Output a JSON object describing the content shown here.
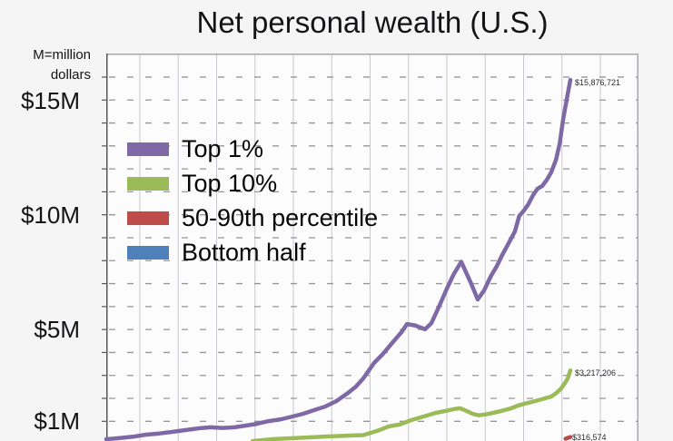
{
  "title": "Net personal wealth (U.S.)",
  "y_axis": {
    "unit_note_line1": "M=million",
    "unit_note_line2": "dollars",
    "tick_labels": [
      {
        "label": "$15M",
        "value_m": 15
      },
      {
        "label": "$10M",
        "value_m": 10
      },
      {
        "label": "$5M",
        "value_m": 5
      },
      {
        "label": "$1M",
        "value_m": 1
      }
    ]
  },
  "legend": {
    "items": [
      {
        "label": "Top 1%",
        "color": "#7e68a5"
      },
      {
        "label": "Top 10%",
        "color": "#9bbb59"
      },
      {
        "label": "50-90th percentile",
        "color": "#be4c4a"
      },
      {
        "label": "Bottom half",
        "color": "#4e81bc"
      }
    ]
  },
  "end_labels": {
    "top1": "$15,876,721",
    "top10": "$3,217,206",
    "mid": "$316,574"
  },
  "colors": {
    "page_bg": "#f5f5f6",
    "plot_bg": "#fcfcfd",
    "v_gridline": "#c8c8ce",
    "h_dash": "#96969b",
    "border": "#a7a7ad",
    "axis": "#57575c",
    "series_top1": "#7e68a5",
    "series_top10": "#9bbb59",
    "series_mid": "#be4c4a",
    "series_bottom": "#4e81bc"
  },
  "chart_data": {
    "type": "line",
    "title": "Net personal wealth (U.S.)",
    "ylabel": "M=million dollars",
    "ylim_m": [
      0,
      17
    ],
    "y_gridline_interval_m": 1,
    "y_labeled_ticks_m": [
      15,
      10,
      5,
      1
    ],
    "v_gridline_count": 13,
    "x_axis_labels_visible": false,
    "legend_position": "upper-left-inside",
    "grid": "both",
    "note": "x given as fraction of plot width (year labels cropped out of screenshot); values in million USD",
    "series": [
      {
        "name": "Top 1%",
        "color": "#7e68a5",
        "end_label": "$15,876,721",
        "end_value_usd": 15876721,
        "visible": true,
        "points": [
          [
            0.0,
            0.22
          ],
          [
            0.025,
            0.27
          ],
          [
            0.05,
            0.33
          ],
          [
            0.075,
            0.42
          ],
          [
            0.1,
            0.47
          ],
          [
            0.125,
            0.54
          ],
          [
            0.15,
            0.62
          ],
          [
            0.176,
            0.7
          ],
          [
            0.196,
            0.74
          ],
          [
            0.218,
            0.71
          ],
          [
            0.241,
            0.74
          ],
          [
            0.261,
            0.81
          ],
          [
            0.283,
            0.89
          ],
          [
            0.305,
            1.01
          ],
          [
            0.329,
            1.09
          ],
          [
            0.35,
            1.21
          ],
          [
            0.37,
            1.33
          ],
          [
            0.391,
            1.49
          ],
          [
            0.411,
            1.64
          ],
          [
            0.432,
            1.88
          ],
          [
            0.452,
            2.2
          ],
          [
            0.469,
            2.51
          ],
          [
            0.483,
            2.87
          ],
          [
            0.503,
            3.54
          ],
          [
            0.52,
            3.94
          ],
          [
            0.537,
            4.41
          ],
          [
            0.555,
            4.89
          ],
          [
            0.565,
            5.24
          ],
          [
            0.58,
            5.18
          ],
          [
            0.599,
            5.01
          ],
          [
            0.611,
            5.28
          ],
          [
            0.625,
            5.99
          ],
          [
            0.64,
            6.78
          ],
          [
            0.653,
            7.42
          ],
          [
            0.667,
            7.95
          ],
          [
            0.686,
            6.98
          ],
          [
            0.698,
            6.31
          ],
          [
            0.71,
            6.71
          ],
          [
            0.722,
            7.3
          ],
          [
            0.734,
            7.77
          ],
          [
            0.744,
            8.25
          ],
          [
            0.756,
            8.76
          ],
          [
            0.768,
            9.28
          ],
          [
            0.776,
            9.95
          ],
          [
            0.785,
            10.19
          ],
          [
            0.793,
            10.46
          ],
          [
            0.802,
            10.86
          ],
          [
            0.81,
            11.13
          ],
          [
            0.819,
            11.25
          ],
          [
            0.828,
            11.53
          ],
          [
            0.836,
            11.85
          ],
          [
            0.845,
            12.4
          ],
          [
            0.852,
            13.11
          ],
          [
            0.858,
            14.1
          ],
          [
            0.865,
            15.01
          ],
          [
            0.872,
            15.877
          ]
        ]
      },
      {
        "name": "Top 10%",
        "color": "#9bbb59",
        "end_label": "$3,217,206",
        "end_value_usd": 3217206,
        "visible": true,
        "points": [
          [
            0.275,
            0.14
          ],
          [
            0.312,
            0.22
          ],
          [
            0.346,
            0.26
          ],
          [
            0.381,
            0.3
          ],
          [
            0.415,
            0.34
          ],
          [
            0.449,
            0.37
          ],
          [
            0.483,
            0.4
          ],
          [
            0.509,
            0.58
          ],
          [
            0.531,
            0.78
          ],
          [
            0.551,
            0.86
          ],
          [
            0.573,
            1.05
          ],
          [
            0.602,
            1.25
          ],
          [
            0.619,
            1.37
          ],
          [
            0.637,
            1.45
          ],
          [
            0.653,
            1.53
          ],
          [
            0.665,
            1.57
          ],
          [
            0.677,
            1.45
          ],
          [
            0.688,
            1.33
          ],
          [
            0.7,
            1.26
          ],
          [
            0.713,
            1.3
          ],
          [
            0.727,
            1.37
          ],
          [
            0.742,
            1.45
          ],
          [
            0.761,
            1.57
          ],
          [
            0.773,
            1.68
          ],
          [
            0.785,
            1.76
          ],
          [
            0.799,
            1.84
          ],
          [
            0.812,
            1.92
          ],
          [
            0.824,
            2.0
          ],
          [
            0.836,
            2.08
          ],
          [
            0.846,
            2.24
          ],
          [
            0.855,
            2.44
          ],
          [
            0.862,
            2.67
          ],
          [
            0.867,
            2.87
          ],
          [
            0.872,
            3.217
          ]
        ]
      },
      {
        "name": "50-90th percentile",
        "color": "#be4c4a",
        "end_label": "$316,574",
        "end_value_usd": 316574,
        "visible": true,
        "points": [
          [
            0.863,
            0.24
          ],
          [
            0.872,
            0.3166
          ]
        ]
      },
      {
        "name": "Bottom half",
        "color": "#4e81bc",
        "end_label": null,
        "end_value_usd": null,
        "visible": false,
        "points": []
      }
    ]
  }
}
